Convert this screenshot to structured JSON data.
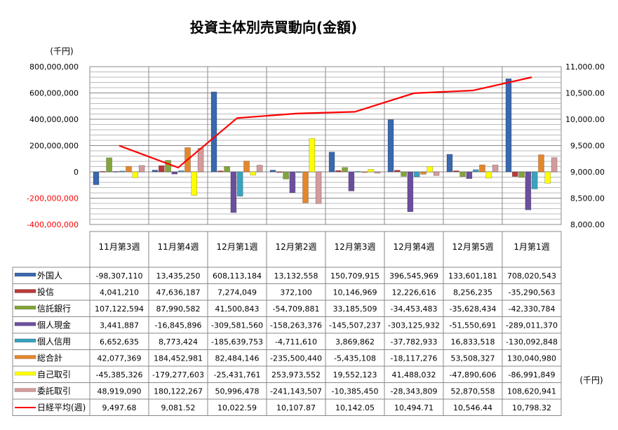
{
  "chart_data": {
    "type": "bar",
    "title": "投資主体別売買動向(金額)",
    "left_unit": "(千円)",
    "right_unit": "(千円)",
    "categories": [
      "11月第3週",
      "11月第4週",
      "12月第1週",
      "12月第2週",
      "12月第3週",
      "12月第4週",
      "12月第5週",
      "1月第1週"
    ],
    "ylim": [
      -400000000,
      800000000
    ],
    "y_ticks": [
      "-400,000,000",
      "-200,000,000",
      "0",
      "200,000,000",
      "400,000,000",
      "600,000,000",
      "800,000,000"
    ],
    "y_tick_values": [
      -400000000,
      -200000000,
      0,
      200000000,
      400000000,
      600000000,
      800000000
    ],
    "y2lim": [
      8000,
      11000
    ],
    "y2_ticks": [
      "8,000.00",
      "8,500.00",
      "9,000.00",
      "9,500.00",
      "10,000.00",
      "10,500.00",
      "11,000.00"
    ],
    "y2_tick_values": [
      8000,
      8500,
      9000,
      9500,
      10000,
      10500,
      11000
    ],
    "grid": true,
    "legend": "table-bottom",
    "series": [
      {
        "name": "外国人",
        "color": "#3a68ad",
        "values": [
          -98307110,
          13435250,
          608113184,
          13132558,
          150709915,
          396545969,
          133601181,
          708020543
        ],
        "labels": [
          "-98,307,110",
          "13,435,250",
          "608,113,184",
          "13,132,558",
          "150,709,915",
          "396,545,969",
          "133,601,181",
          "708,020,543"
        ]
      },
      {
        "name": "投信",
        "color": "#b9393a",
        "values": [
          4041210,
          47636187,
          7274049,
          372100,
          10146969,
          12226616,
          8256235,
          -35290563
        ],
        "labels": [
          "4,041,210",
          "47,636,187",
          "7,274,049",
          "372,100",
          "10,146,969",
          "12,226,616",
          "8,256,235",
          "-35,290,563"
        ]
      },
      {
        "name": "信託銀行",
        "color": "#84a43b",
        "values": [
          107122594,
          87990582,
          41500843,
          -54709881,
          33185509,
          -34453483,
          -35628434,
          -42330784
        ],
        "labels": [
          "107,122,594",
          "87,990,582",
          "41,500,843",
          "-54,709,881",
          "33,185,509",
          "-34,453,483",
          "-35,628,434",
          "-42,330,784"
        ]
      },
      {
        "name": "個人現金",
        "color": "#6b4f9e",
        "values": [
          3441887,
          -16845896,
          -309581560,
          -158263376,
          -145507237,
          -303125932,
          -51550691,
          -289011370
        ],
        "labels": [
          "3,441,887",
          "-16,845,896",
          "-309,581,560",
          "-158,263,376",
          "-145,507,237",
          "-303,125,932",
          "-51,550,691",
          "-289,011,370"
        ]
      },
      {
        "name": "個人信用",
        "color": "#3aa2bd",
        "values": [
          6652635,
          8773424,
          -185639753,
          -4711610,
          3869862,
          -37782933,
          16833518,
          -130092848
        ],
        "labels": [
          "6,652,635",
          "8,773,424",
          "-185,639,753",
          "-4,711,610",
          "3,869,862",
          "-37,782,933",
          "16,833,518",
          "-130,092,848"
        ]
      },
      {
        "name": "総合計",
        "color": "#e4862b",
        "values": [
          42077369,
          184452981,
          82484146,
          -235500440,
          -5435108,
          -18117276,
          53508327,
          130040980
        ],
        "labels": [
          "42,077,369",
          "184,452,981",
          "82,484,146",
          "-235,500,440",
          "-5,435,108",
          "-18,117,276",
          "53,508,327",
          "130,040,980"
        ]
      },
      {
        "name": "自己取引",
        "color": "#ffff00",
        "values": [
          -45385326,
          -179277603,
          -25431761,
          253973552,
          19552123,
          41488032,
          -47890606,
          -86991849
        ],
        "labels": [
          "-45,385,326",
          "-179,277,603",
          "-25,431,761",
          "253,973,552",
          "19,552,123",
          "41,488,032",
          "-47,890,606",
          "-86,991,849"
        ]
      },
      {
        "name": "委託取引",
        "color": "#d39b9b",
        "values": [
          48919090,
          180122267,
          50996478,
          -241143507,
          -10385450,
          -28343809,
          52870558,
          108620941
        ],
        "labels": [
          "48,919,090",
          "180,122,267",
          "50,996,478",
          "-241,143,507",
          "-10,385,450",
          "-28,343,809",
          "52,870,558",
          "108,620,941"
        ]
      }
    ],
    "line_series": {
      "name": "日経平均(週)",
      "color": "#ff0000",
      "axis": "right",
      "values": [
        9497.68,
        9081.52,
        10022.59,
        10107.87,
        10142.05,
        10494.71,
        10546.44,
        10798.32
      ],
      "labels": [
        "9,497.68",
        "9,081.52",
        "10,022.59",
        "10,107.87",
        "10,142.05",
        "10,494.71",
        "10,546.44",
        "10,798.32"
      ]
    }
  }
}
